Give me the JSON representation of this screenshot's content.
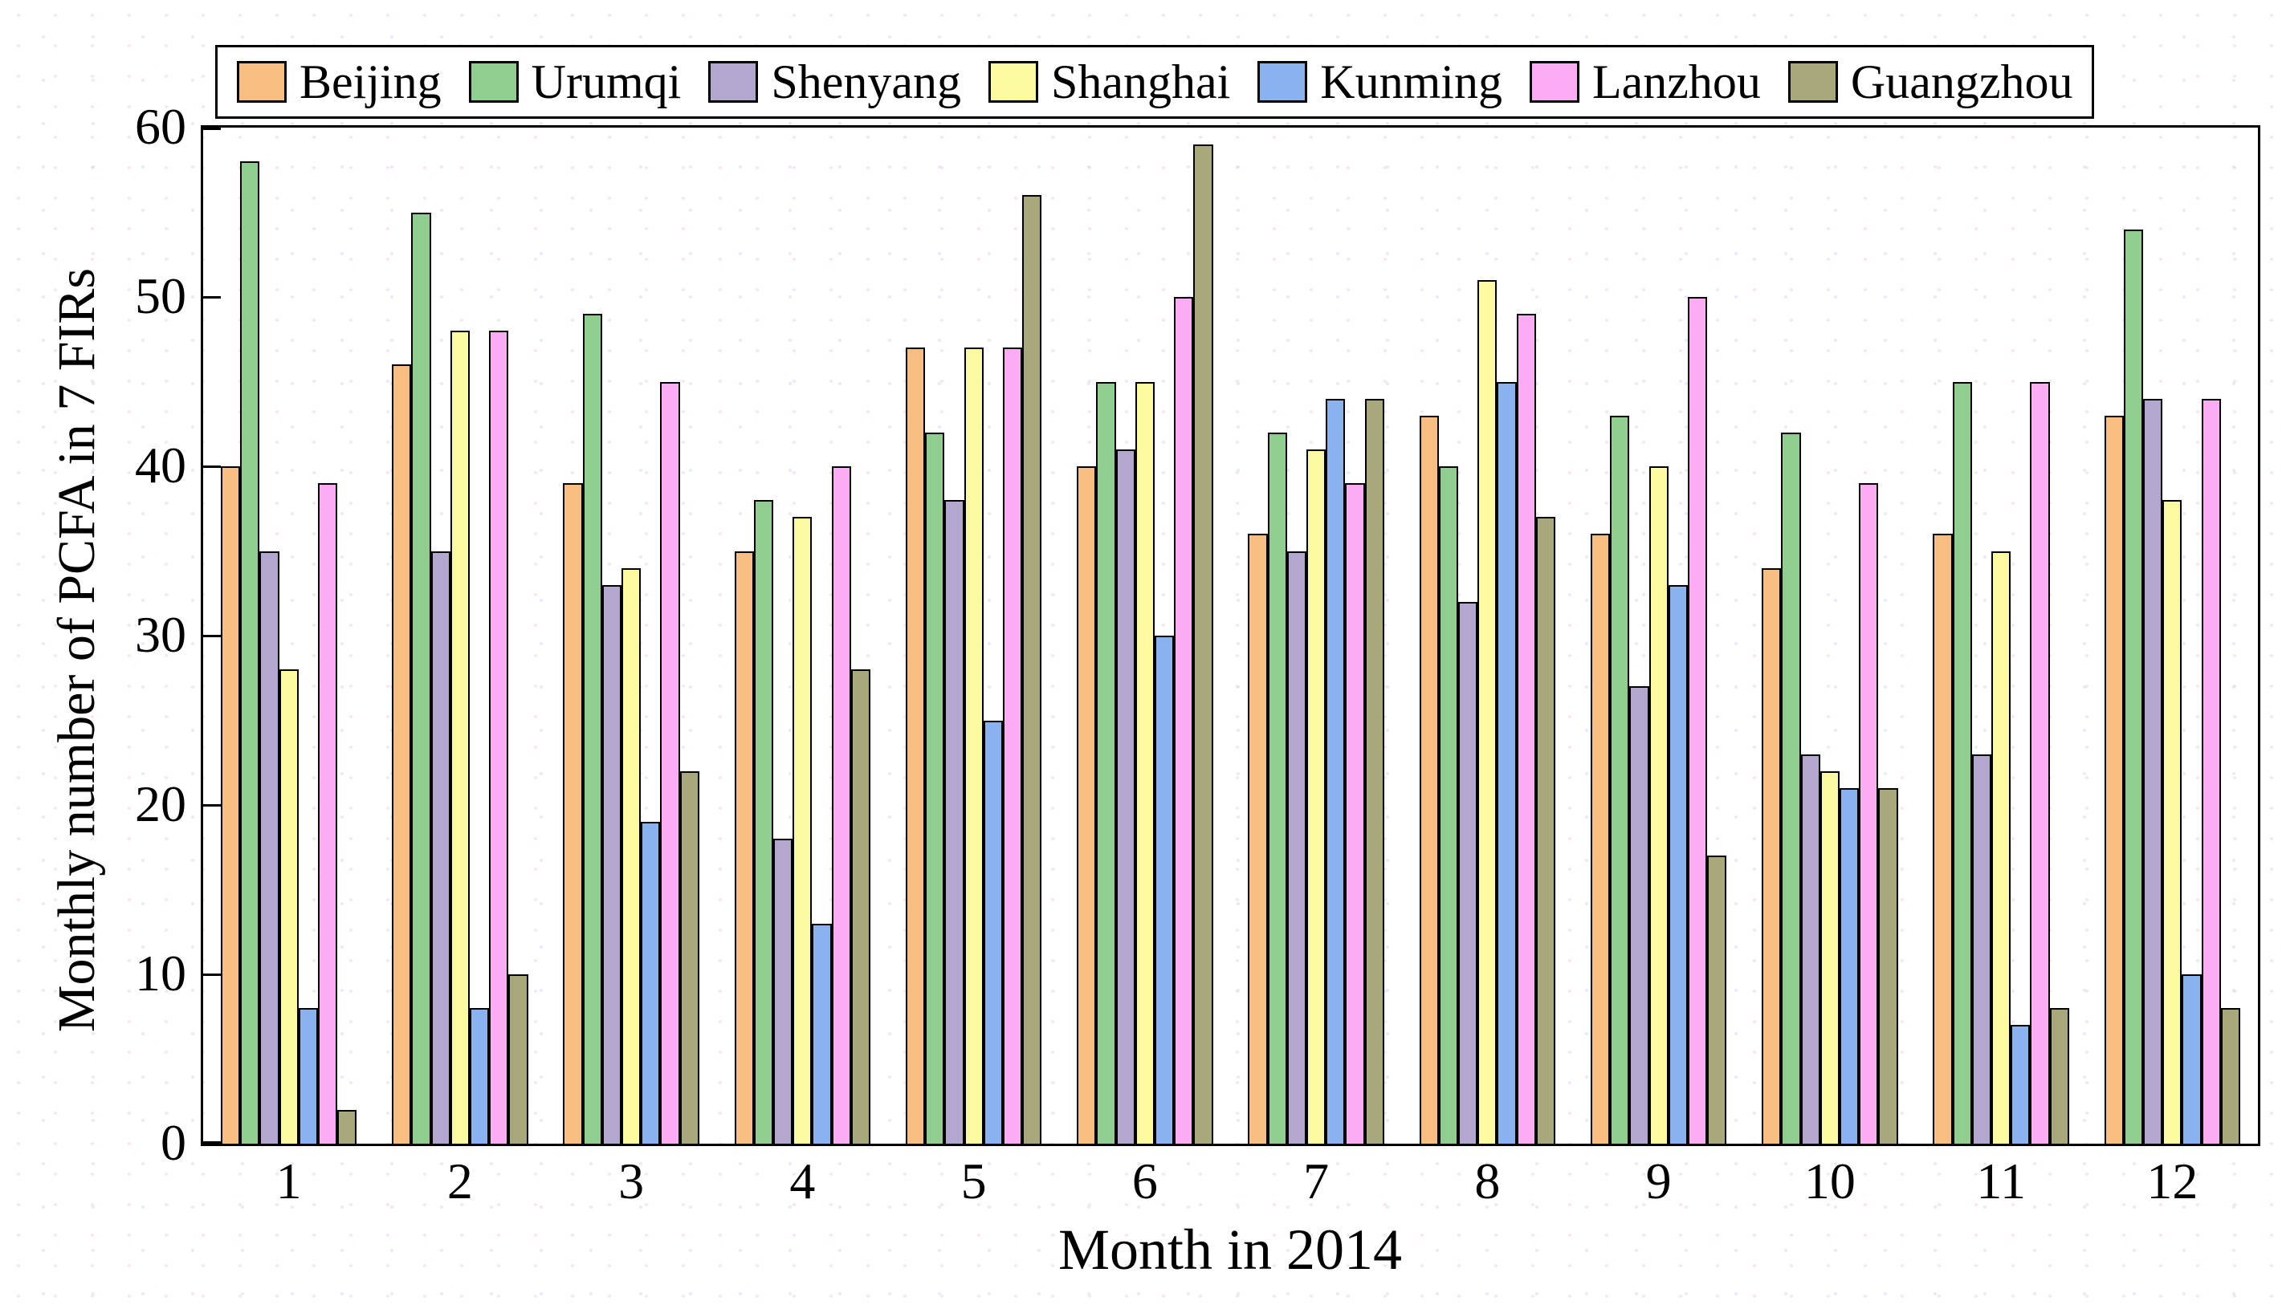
{
  "figure": {
    "x_axis_title": "Month in 2014",
    "y_axis_title": "Monthly number of PCFA in 7 FIRs"
  },
  "chart_data": {
    "type": "bar",
    "title": "",
    "xlabel": "Month in 2014",
    "ylabel": "Monthly number of PCFA in 7 FIRs",
    "categories": [
      "1",
      "2",
      "3",
      "4",
      "5",
      "6",
      "7",
      "8",
      "9",
      "10",
      "11",
      "12"
    ],
    "ylim": [
      0,
      60
    ],
    "yticks": [
      0,
      10,
      20,
      30,
      40,
      50,
      60
    ],
    "grid": false,
    "legend_position": "top",
    "bar_edge_color": "#000000",
    "series": [
      {
        "name": "Beijing",
        "color": "#F8BE81",
        "values": [
          40,
          46,
          39,
          35,
          47,
          40,
          36,
          43,
          36,
          34,
          36,
          43
        ]
      },
      {
        "name": "Urumqi",
        "color": "#8FCE8F",
        "values": [
          58,
          55,
          49,
          38,
          42,
          45,
          42,
          40,
          43,
          42,
          45,
          54
        ]
      },
      {
        "name": "Shenyang",
        "color": "#B4A7CF",
        "values": [
          35,
          35,
          33,
          18,
          38,
          41,
          35,
          32,
          27,
          23,
          23,
          44
        ]
      },
      {
        "name": "Shanghai",
        "color": "#FCFAA0",
        "values": [
          28,
          48,
          34,
          37,
          47,
          45,
          41,
          51,
          40,
          22,
          35,
          38
        ]
      },
      {
        "name": "Kunming",
        "color": "#8AB2EF",
        "values": [
          8,
          8,
          19,
          13,
          25,
          30,
          44,
          45,
          33,
          21,
          7,
          10
        ]
      },
      {
        "name": "Lanzhou",
        "color": "#FBACF2",
        "values": [
          39,
          48,
          45,
          40,
          47,
          50,
          39,
          49,
          50,
          39,
          45,
          44
        ]
      },
      {
        "name": "Guangzhou",
        "color": "#A9A87A",
        "values": [
          2,
          10,
          22,
          28,
          56,
          59,
          44,
          37,
          17,
          21,
          8,
          8
        ]
      }
    ]
  }
}
